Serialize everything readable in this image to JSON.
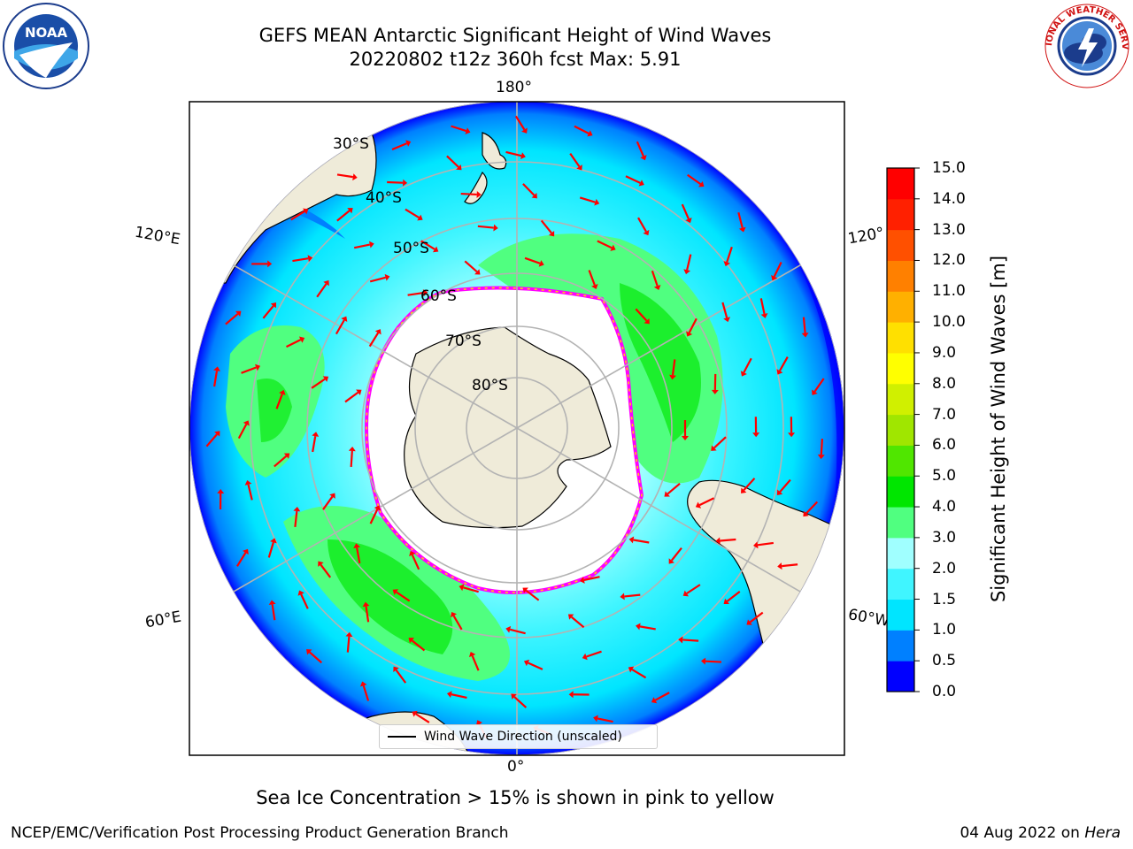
{
  "header": {
    "title_line1": "GEFS MEAN Antarctic Significant Height of Wind Waves",
    "title_line2": "20220802 t12z 360h fcst   Max: 5.91"
  },
  "logos": {
    "left": {
      "name": "noaa-logo",
      "text": "NOAA"
    },
    "right": {
      "name": "national-weather-service-logo",
      "text": "NATIONAL WEATHER SERVICE"
    }
  },
  "map": {
    "longitude_labels": {
      "top": "180°",
      "bottom": "0°",
      "left_upper": "120°E",
      "left_lower": "60°E",
      "right_upper": "120°",
      "right_lower": "60°W"
    },
    "latitude_labels": [
      "30°S",
      "40°S",
      "50°S",
      "60°S",
      "70°S",
      "80°S"
    ],
    "legend": {
      "line_label": "Wind Wave Direction (unscaled)"
    },
    "arrow_color": "#ff0000",
    "land_color": "#efebd9",
    "ice_edge_colors": [
      "#ff00ff",
      "#ffd700"
    ]
  },
  "colorbar": {
    "title": "Significant Height of Wind Waves [m]",
    "ticks": [
      "0.0",
      "0.5",
      "1.0",
      "1.5",
      "2.0",
      "3.0",
      "4.0",
      "5.0",
      "6.0",
      "7.0",
      "8.0",
      "9.0",
      "10.0",
      "11.0",
      "12.0",
      "13.0",
      "14.0",
      "15.0"
    ],
    "colors": [
      "#0000ff",
      "#0080ff",
      "#00e5ff",
      "#40f5ff",
      "#a0ffff",
      "#50ff80",
      "#00e600",
      "#50e600",
      "#a0e600",
      "#d0f000",
      "#ffff00",
      "#ffe000",
      "#ffb000",
      "#ff8000",
      "#ff5000",
      "#ff2000",
      "#ff0000"
    ]
  },
  "footer": {
    "center": "Sea Ice Concentration > 15% is shown in pink to yellow",
    "left": "NCEP/EMC/Verification Post Processing Product Generation Branch",
    "right_date": "04 Aug 2022 on ",
    "right_host": "Hera"
  }
}
